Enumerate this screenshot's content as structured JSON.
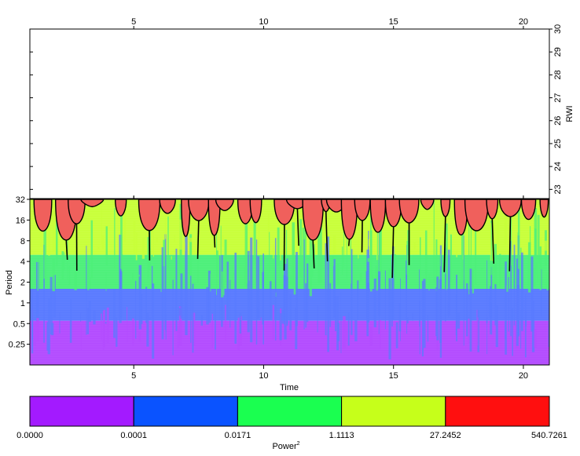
{
  "chart_data": [
    {
      "type": "line",
      "panel": "series",
      "title": "",
      "xlabel": "",
      "ylabel": "RWI",
      "xlim": [
        1,
        21
      ],
      "ylim": [
        22.6,
        30
      ],
      "x_ticks": [
        5,
        10,
        15,
        20
      ],
      "y_ticks": [
        23,
        24,
        25,
        26,
        27,
        28,
        29,
        30
      ],
      "series": []
    },
    {
      "type": "heatmap",
      "panel": "wavelet-power",
      "xlabel": "Time",
      "ylabel": "Period",
      "xlim": [
        1,
        21
      ],
      "period_range": [
        0.125,
        32
      ],
      "x_ticks": [
        5,
        10,
        15,
        20
      ],
      "period_ticks": [
        "0.25",
        "0.5",
        "1",
        "2",
        "4",
        "8",
        "16",
        "32"
      ],
      "power_levels": [
        "violet",
        "blue",
        "green",
        "yellow-green",
        "red"
      ],
      "significance_contour": "black"
    },
    {
      "type": "legend-colorbar",
      "label": "Power",
      "label_superscript": "2",
      "breaks": [
        "0.0000",
        "0.0001",
        "0.0171",
        "1.1113",
        "27.2452",
        "540.7261"
      ],
      "colors": [
        "#a31aff",
        "#0a53ff",
        "#1aff50",
        "#c6ff1a",
        "#ff0f0f"
      ]
    }
  ],
  "colors": {
    "power_violet": "#b34cff",
    "power_blue": "#5a7bff",
    "power_green": "#4df07a",
    "power_yellowgreen": "#c8ff3a",
    "power_red": "#f0605c"
  }
}
